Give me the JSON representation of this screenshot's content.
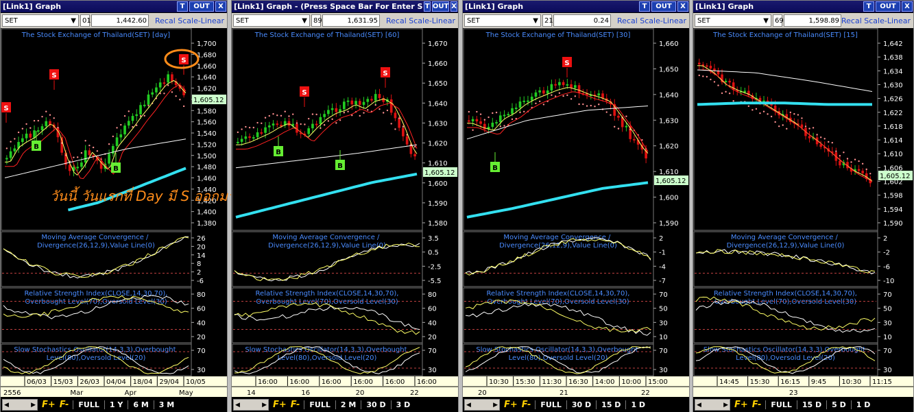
{
  "windows": [
    {
      "id": "day",
      "title": "[Link1] Graph",
      "symbol": "SET",
      "tb_num": "01",
      "tb_value": "1,442.60",
      "recal_label": "Recal Scale-Linear",
      "chart_title": "The Stock Exchange of Thailand(SET) [day]",
      "price_axis": [
        "1,700",
        "1,680",
        "1,660",
        "1,640",
        "1,620",
        "1,600",
        "1,580",
        "1,560",
        "1,540",
        "1,520",
        "1,500",
        "1,480",
        "1,460",
        "1,440",
        "1,420",
        "1,400",
        "1,380"
      ],
      "last_price": "1,605.12",
      "annotation": "วันนี้ วันแรกที่ Day มี S ออกมา",
      "signals": [
        "S",
        "S",
        "S",
        "B",
        "B"
      ],
      "macd_title": "Moving Average Convergence / Divergence(26,12,9),Value Line(0)",
      "macd_axis": [
        "26",
        "20",
        "14",
        "8",
        "2",
        "-6"
      ],
      "rsi_title": "Relative Strength Index(CLOSE,14,30,70),Overbought Level(70),Oversold Level(30)",
      "rsi_axis": [
        "80",
        "60",
        "40",
        "20"
      ],
      "stoch_title": "Slow Stochastics Oscillator(14,3,3),Overbought Level(80),Oversold Level(20)",
      "stoch_axis": [
        "70",
        "30"
      ],
      "date_row1": [
        "06/03",
        "15/03",
        "26/03",
        "04/04",
        "18/04",
        "29/04",
        "10/05"
      ],
      "date_row2": [
        "2556",
        "Mar",
        "Apr",
        "May"
      ],
      "periods": [
        "FULL",
        "1 Y",
        "6 M",
        "3 M"
      ]
    },
    {
      "id": "60",
      "title": "[Link1] Graph  - (Press Space Bar For Enter S",
      "symbol": "SET",
      "tb_num": "89",
      "tb_value": "1,631.95",
      "recal_label": "Recal Scale-Linear",
      "chart_title": "The Stock Exchange of Thailand(SET) [60]",
      "price_axis": [
        "1,670",
        "1,660",
        "1,650",
        "1,640",
        "1,630",
        "1,620",
        "1,610",
        "1,600",
        "1,590",
        "1,580"
      ],
      "last_price": "1,605.12",
      "signals": [
        "S",
        "S",
        "B",
        "B"
      ],
      "macd_title": "Moving Average Convergence / Divergence(26,12,9),Value Line(0)",
      "macd_axis": [
        "3.5",
        "0.5",
        "-2.5",
        "-5.5"
      ],
      "rsi_title": "Relative Strength Index(CLOSE,14,30,70),Overbought Level(70),Oversold Level(30)",
      "rsi_axis": [
        "80",
        "60",
        "40",
        "20"
      ],
      "stoch_title": "Slow Stochastics Oscillator(14,3,3),Overbought Level(80),Oversold Level(20)",
      "stoch_axis": [
        "70",
        "30"
      ],
      "date_row1": [
        "16:00",
        "16:00",
        "16:00",
        "16:00",
        "16:00",
        "16:00"
      ],
      "date_row2": [
        "14",
        "16",
        "20",
        "22"
      ],
      "periods": [
        "FULL",
        "2 M",
        "30 D",
        "3 D"
      ]
    },
    {
      "id": "30",
      "title": "[Link1] Graph",
      "symbol": "SET",
      "tb_num": "21",
      "tb_value": "0.24",
      "recal_label": "Recal Scale-Linear",
      "chart_title": "The Stock Exchange of Thailand(SET) [30]",
      "price_axis": [
        "1,660",
        "1,650",
        "1,640",
        "1,630",
        "1,620",
        "1,610",
        "1,600",
        "1,590"
      ],
      "last_price": "1,605.12",
      "signals": [
        "S",
        "B"
      ],
      "macd_title": "Moving Average Convergence / Divergence(26,12,9),Value Line(0)",
      "macd_axis": [
        "2",
        "-1",
        "-4",
        "-7"
      ],
      "rsi_title": "Relative Strength Index(CLOSE,14,30,70),Overbought Level(70),Oversold Level(30)",
      "rsi_axis": [
        "70",
        "50",
        "30",
        "10"
      ],
      "stoch_title": "Slow Stochastics Oscillator(14,3,3),Overbought Level(80),Oversold Level(20)",
      "stoch_axis": [
        "70",
        "30"
      ],
      "date_row1": [
        "10:30",
        "15:30",
        "11:30",
        "16:30",
        "14:00",
        "10:00",
        "15:00"
      ],
      "date_row2": [
        "20",
        "21",
        "22"
      ],
      "periods": [
        "FULL",
        "30 D",
        "15 D",
        "1 D"
      ]
    },
    {
      "id": "15",
      "title": "[Link1] Graph",
      "symbol": "SET",
      "tb_num": "69",
      "tb_value": "1,598.89",
      "recal_label": "Recal Scale-Linear",
      "chart_title": "The Stock Exchange of Thailand(SET) [15]",
      "price_axis": [
        "1,642",
        "1,638",
        "1,634",
        "1,630",
        "1,626",
        "1,622",
        "1,618",
        "1,614",
        "1,610",
        "1,606",
        "1,602",
        "1,598",
        "1,594",
        "1,590"
      ],
      "last_price": "1,605.12",
      "signals": [],
      "macd_title": "Moving Average Convergence / Divergence(26,12,9),Value Line(0)",
      "macd_axis": [
        "2",
        "-2",
        "-6",
        "-10"
      ],
      "rsi_title": "Relative Strength Index(CLOSE,14,30,70),Overbought Level(70),Oversold Level(30)",
      "rsi_axis": [
        "70",
        "50",
        "30",
        "10"
      ],
      "stoch_title": "Slow Stochastics Oscillator(14,3,3),Overbought Level(80),Oversold Level(20)",
      "stoch_axis": [
        "70",
        "30"
      ],
      "date_row1": [
        "14:45",
        "15:30",
        "16:15",
        "9:45",
        "10:30",
        "11:15"
      ],
      "date_row2": [
        "23"
      ],
      "periods": [
        "FULL",
        "15 D",
        "5 D",
        "1 D"
      ]
    }
  ],
  "title_buttons": {
    "t": "T",
    "out": "OUT",
    "x": "X"
  },
  "f_buttons": [
    "F+",
    "F-"
  ],
  "colors": {
    "candle_up": "#22cc22",
    "candle_down": "#dd1111",
    "ma_white": "#ffffff",
    "ma_red": "#ff2222",
    "ma_yellow": "#ffff66",
    "ma_cyan": "#33e0f0",
    "sar": "#ff9090",
    "title_text": "#4a8cff",
    "signal_s": "#ee1111",
    "signal_b": "#66ee33",
    "last_price_bg": "#ccffcc",
    "annotation": "#ff8c1a"
  }
}
